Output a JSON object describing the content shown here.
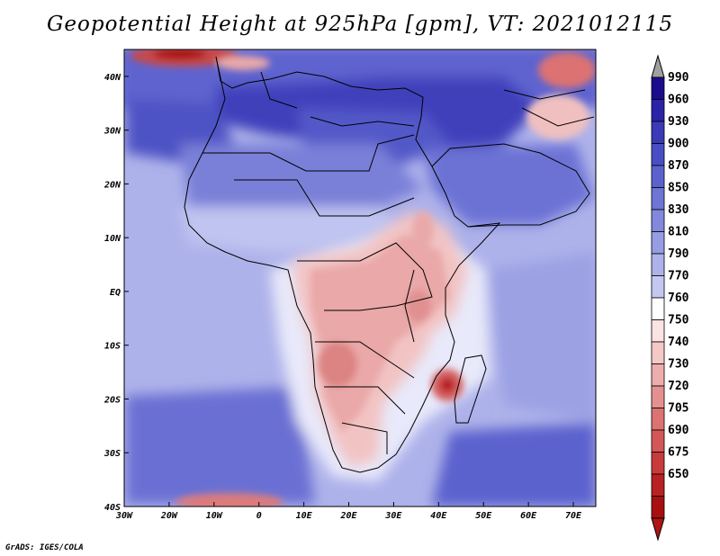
{
  "title": "Geopotential Height at 925hPa [gpm], VT: 2021012115",
  "credit": "GrADS: IGES/COLA",
  "map": {
    "lon_range": [
      -30,
      75
    ],
    "lat_range": [
      -40,
      45
    ],
    "lon_ticks": [
      "30W",
      "20W",
      "10W",
      "0",
      "10E",
      "20E",
      "30E",
      "40E",
      "50E",
      "60E",
      "70E"
    ],
    "lat_ticks": [
      "40N",
      "30N",
      "20N",
      "10N",
      "EQ",
      "10S",
      "20S",
      "30S",
      "40S"
    ]
  },
  "colorbar": {
    "levels": [
      "990",
      "960",
      "930",
      "900",
      "870",
      "850",
      "830",
      "810",
      "790",
      "770",
      "760",
      "750",
      "740",
      "730",
      "720",
      "705",
      "690",
      "675",
      "650"
    ],
    "colors": [
      "#1a0c8c",
      "#2a23a8",
      "#3a3ab8",
      "#4a4ec4",
      "#5c62cd",
      "#6e75d4",
      "#8289dc",
      "#979de3",
      "#adb2ea",
      "#c4c8f1",
      "#ffffff",
      "#fbe3e3",
      "#f5c8c8",
      "#eeadad",
      "#e59090",
      "#dc7272",
      "#d45656",
      "#c83b3b",
      "#b82222",
      "#a81010"
    ],
    "over_color": "#a0a0a0",
    "under_color": "#b01414"
  }
}
